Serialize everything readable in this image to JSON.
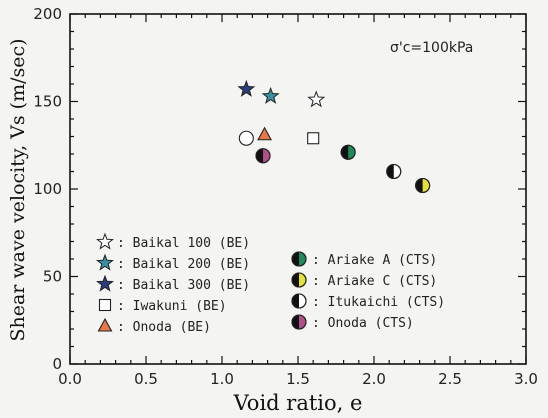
{
  "chart_data": {
    "type": "scatter",
    "xlabel": "Void ratio, e",
    "ylabel": "Shear wave velocity, Vs (m/sec)",
    "annotation": "σ'c=100kPa",
    "xlim": [
      0.0,
      3.0
    ],
    "ylim": [
      0,
      200
    ],
    "xticks": [
      "0.0",
      "0.5",
      "1.0",
      "1.5",
      "2.0",
      "2.5",
      "3.0"
    ],
    "yticks": [
      "0",
      "50",
      "100",
      "150",
      "200"
    ],
    "grid": false,
    "legend_placement": "bottom",
    "series": [
      {
        "name": ": Baikal 100 (BE)",
        "marker": "star",
        "fill": "#ffffff",
        "points": [
          {
            "x": 1.62,
            "y": 151
          }
        ]
      },
      {
        "name": ": Baikal 200 (BE)",
        "marker": "star",
        "fill": "#3a8fa0",
        "points": [
          {
            "x": 1.32,
            "y": 153
          }
        ]
      },
      {
        "name": ": Baikal 300 (BE)",
        "marker": "star",
        "fill": "#2a3d7a",
        "points": [
          {
            "x": 1.16,
            "y": 157
          }
        ]
      },
      {
        "name": ": Iwakuni (BE)",
        "marker": "square",
        "fill": "#ffffff",
        "points": [
          {
            "x": 1.6,
            "y": 129
          }
        ]
      },
      {
        "name": ": Onoda (BE)",
        "marker": "triangle",
        "fill": "#e8784a",
        "points": [
          {
            "x": 1.28,
            "y": 131
          }
        ]
      },
      {
        "name": ": Ariake A (CTS)",
        "marker": "half-circle",
        "fill": "#1f8a5a",
        "points": [
          {
            "x": 1.83,
            "y": 121
          }
        ]
      },
      {
        "name": ": Ariake C (CTS)",
        "marker": "half-circle",
        "fill": "#e6e03a",
        "points": [
          {
            "x": 2.32,
            "y": 102
          }
        ]
      },
      {
        "name": ": Itukaichi (CTS)",
        "marker": "half-circle",
        "fill": "#ffffff",
        "points": [
          {
            "x": 2.13,
            "y": 110
          }
        ]
      },
      {
        "name": ": Onoda (CTS)",
        "marker": "half-circle",
        "fill": "#b0508a",
        "points": [
          {
            "x": 1.27,
            "y": 119
          }
        ]
      },
      {
        "name": "",
        "marker": "circle",
        "fill": "#ffffff",
        "points": [
          {
            "x": 1.16,
            "y": 129
          }
        ]
      }
    ]
  }
}
